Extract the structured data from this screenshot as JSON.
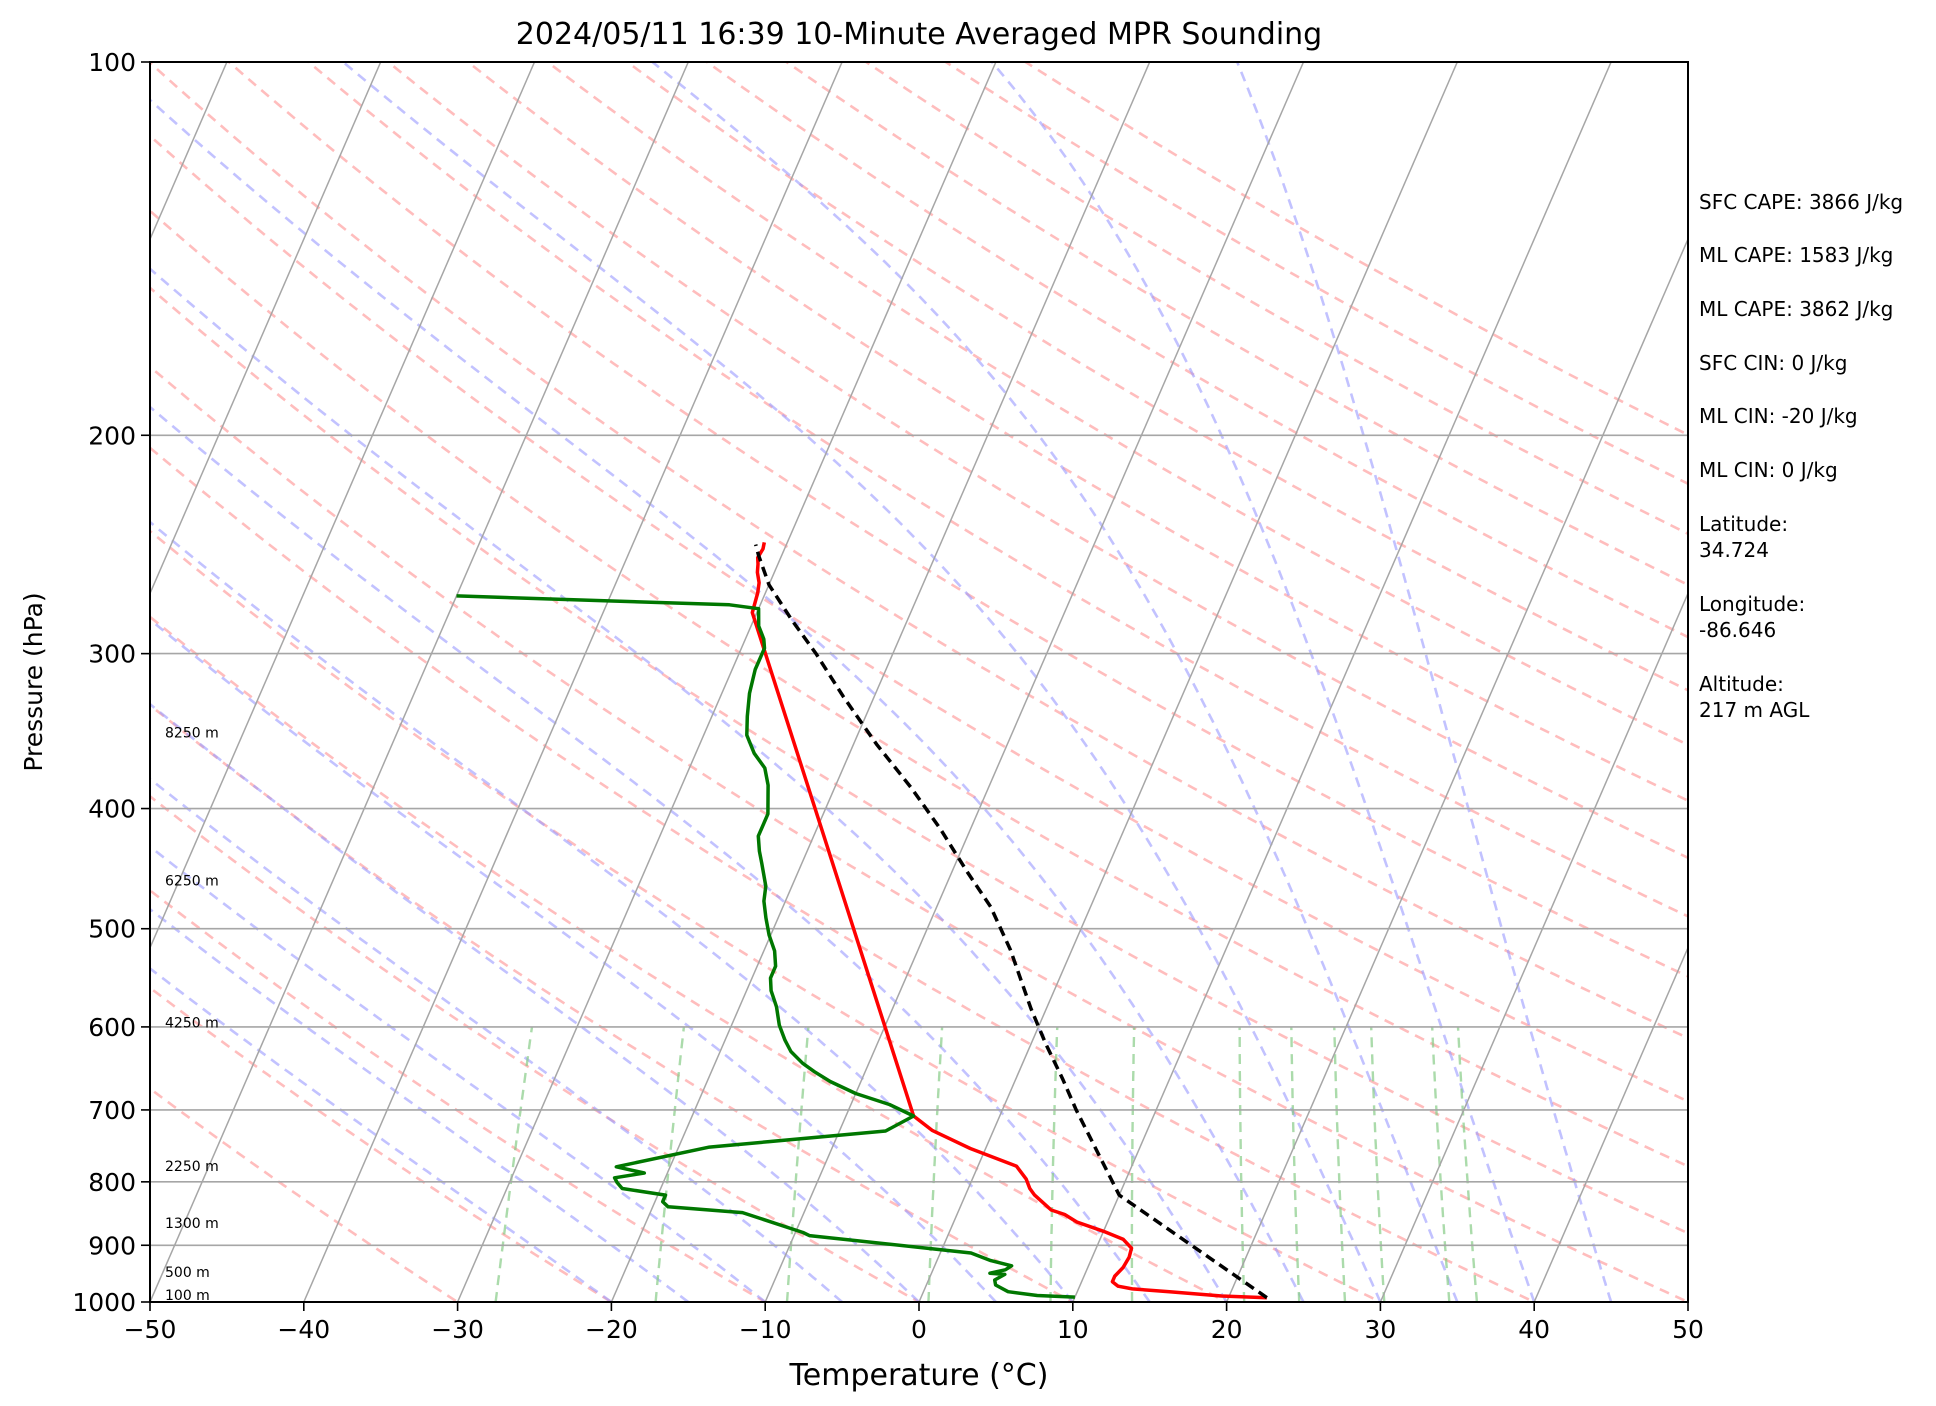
{
  "chart_data": {
    "type": "line",
    "subtype": "skew-t log-p sounding",
    "title": "2024/05/11 16:39 10-Minute Averaged MPR Sounding",
    "xlabel": "Temperature (°C)",
    "ylabel": "Pressure (hPa)",
    "xlim": [
      -50,
      50
    ],
    "ylim": [
      1000,
      100
    ],
    "y_scale": "log",
    "x_ticks": [
      "−50",
      "−40",
      "−30",
      "−20",
      "−10",
      "0",
      "10",
      "20",
      "30",
      "40",
      "50"
    ],
    "y_ticks": [
      "100",
      "200",
      "300",
      "400",
      "500",
      "600",
      "700",
      "800",
      "900",
      "1000"
    ],
    "height_labels": [
      {
        "text": "8250 m",
        "pressure": 352
      },
      {
        "text": "6250 m",
        "pressure": 463
      },
      {
        "text": "4250 m",
        "pressure": 603
      },
      {
        "text": "2250 m",
        "pressure": 787
      },
      {
        "text": "1300 m",
        "pressure": 875
      },
      {
        "text": "500 m",
        "pressure": 958
      },
      {
        "text": "100 m",
        "pressure": 1000
      }
    ],
    "series": [
      {
        "color": "#ff0000",
        "points": [
          [
            22.5,
            992
          ],
          [
            19.5,
            989
          ],
          [
            16,
            981
          ],
          [
            13.5,
            976
          ],
          [
            12.5,
            971
          ],
          [
            12,
            963
          ],
          [
            12,
            953
          ],
          [
            12.3,
            938
          ],
          [
            12.4,
            920
          ],
          [
            12.3,
            905
          ],
          [
            11.5,
            890
          ],
          [
            10,
            877
          ],
          [
            8,
            862
          ],
          [
            7,
            850
          ],
          [
            6,
            843
          ],
          [
            4.5,
            820
          ],
          [
            4,
            810
          ],
          [
            3.5,
            796
          ],
          [
            2.5,
            777
          ],
          [
            -1,
            752
          ],
          [
            -4,
            727
          ],
          [
            -5.6,
            708
          ],
          [
            -30.3,
            278
          ],
          [
            -30.5,
            268
          ],
          [
            -30.7,
            263
          ],
          [
            -31.1,
            258
          ],
          [
            -31.3,
            254
          ],
          [
            -31.5,
            251
          ],
          [
            -31.4,
            247
          ],
          [
            -31.5,
            244
          ]
        ]
      },
      {
        "color": "#007700",
        "points": [
          [
            10,
            991
          ],
          [
            7.5,
            988
          ],
          [
            5.5,
            981
          ],
          [
            4.5,
            969
          ],
          [
            4.3,
            960
          ],
          [
            4.8,
            950
          ],
          [
            3.8,
            948
          ],
          [
            4.7,
            942
          ],
          [
            5,
            935
          ],
          [
            3.5,
            926
          ],
          [
            2,
            913
          ],
          [
            -9,
            884
          ],
          [
            -9.5,
            879
          ],
          [
            -14,
            847
          ],
          [
            -19,
            838
          ],
          [
            -19.5,
            830
          ],
          [
            -19.5,
            820
          ],
          [
            -22.5,
            810
          ],
          [
            -23,
            801
          ],
          [
            -23.3,
            794
          ],
          [
            -21.5,
            787
          ],
          [
            -23.5,
            778
          ],
          [
            -18,
            750
          ],
          [
            -7,
            728
          ],
          [
            -5.6,
            708
          ],
          [
            -7.5,
            693
          ],
          [
            -10,
            679
          ],
          [
            -12,
            664
          ],
          [
            -13.3,
            652
          ],
          [
            -14.3,
            642
          ],
          [
            -15.4,
            628
          ],
          [
            -16.1,
            615
          ],
          [
            -16.9,
            598
          ],
          [
            -17.6,
            578
          ],
          [
            -18.4,
            561
          ],
          [
            -18.8,
            548
          ],
          [
            -18.8,
            536
          ],
          [
            -19.3,
            521
          ],
          [
            -20.1,
            506
          ],
          [
            -20.8,
            490
          ],
          [
            -21.4,
            475
          ],
          [
            -21.7,
            462
          ],
          [
            -22.6,
            443
          ],
          [
            -23.1,
            433
          ],
          [
            -23.6,
            421
          ],
          [
            -23.6,
            404
          ],
          [
            -24.4,
            383
          ],
          [
            -25.1,
            371
          ],
          [
            -26.2,
            361
          ],
          [
            -27.2,
            349
          ],
          [
            -27.7,
            337
          ],
          [
            -28.2,
            323
          ],
          [
            -28.5,
            309
          ],
          [
            -28.5,
            297
          ],
          [
            -28.8,
            292
          ],
          [
            -29.5,
            285
          ],
          [
            -30,
            276
          ],
          [
            -32,
            274
          ],
          [
            -40,
            272
          ],
          [
            -48,
            270
          ],
          [
            -50,
            269.5
          ]
        ]
      },
      {
        "color": "#000000",
        "dash": "dashed",
        "points": [
          [
            22.5,
            992
          ],
          [
            10,
            820
          ],
          [
            4.8,
            700
          ],
          [
            3,
            660
          ],
          [
            1,
            620
          ],
          [
            -1,
            580
          ],
          [
            -4,
            520
          ],
          [
            -6.5,
            480
          ],
          [
            -9,
            450
          ],
          [
            -12,
            415
          ],
          [
            -15,
            385
          ],
          [
            -18.5,
            355
          ],
          [
            -22,
            325
          ],
          [
            -25,
            300
          ],
          [
            -27.5,
            282
          ],
          [
            -30,
            264
          ],
          [
            -31.5,
            250
          ],
          [
            -32,
            245
          ]
        ]
      }
    ],
    "background_lines": {
      "isobars_hpa": [
        100,
        200,
        300,
        400,
        500,
        600,
        700,
        800,
        900,
        1000
      ],
      "isotherms_c": [
        -150,
        -140,
        -130,
        -120,
        -110,
        -100,
        -90,
        -80,
        -70,
        -60,
        -50,
        -40,
        -30,
        -20,
        -10,
        0,
        10,
        20,
        30,
        40,
        50
      ],
      "dry_adiabats_c": [
        -30,
        -20,
        -10,
        0,
        10,
        20,
        30,
        40,
        50,
        60,
        70,
        80,
        90,
        100,
        110,
        120,
        130,
        140,
        150,
        160,
        170,
        180,
        190,
        200
      ],
      "moist_adiabats_c": [
        -20,
        -15,
        -10,
        -5,
        0,
        5,
        10,
        15,
        20,
        25,
        30,
        35,
        40,
        45
      ],
      "mixing_ratios_gkg": [
        0.4,
        1,
        2,
        4,
        7,
        10,
        16,
        20,
        24,
        28,
        36,
        40
      ]
    },
    "grid": true
  },
  "info_panel": {
    "sfc_cape": "SFC CAPE: 3866 J/kg",
    "ml_cape_1": "ML CAPE: 1583 J/kg",
    "ml_cape_2": "ML CAPE: 3862 J/kg",
    "sfc_cin": "SFC CIN: 0 J/kg",
    "ml_cin_1": "ML CIN: -20 J/kg",
    "ml_cin_2": "ML CIN: 0 J/kg",
    "latitude_label": "Latitude:",
    "latitude_value": "34.724",
    "longitude_label": "Longitude:",
    "longitude_value": "-86.646",
    "altitude_label": "Altitude:",
    "altitude_value": "217 m AGL"
  },
  "colors": {
    "temperature": "#ff0000",
    "dewpoint": "#007700",
    "parcel": "#000000",
    "dry_adiabat": "#ff9999",
    "moist_adiabat": "#9999ff",
    "mixing_ratio": "#88cc88",
    "grid": "#a6a6a6"
  }
}
